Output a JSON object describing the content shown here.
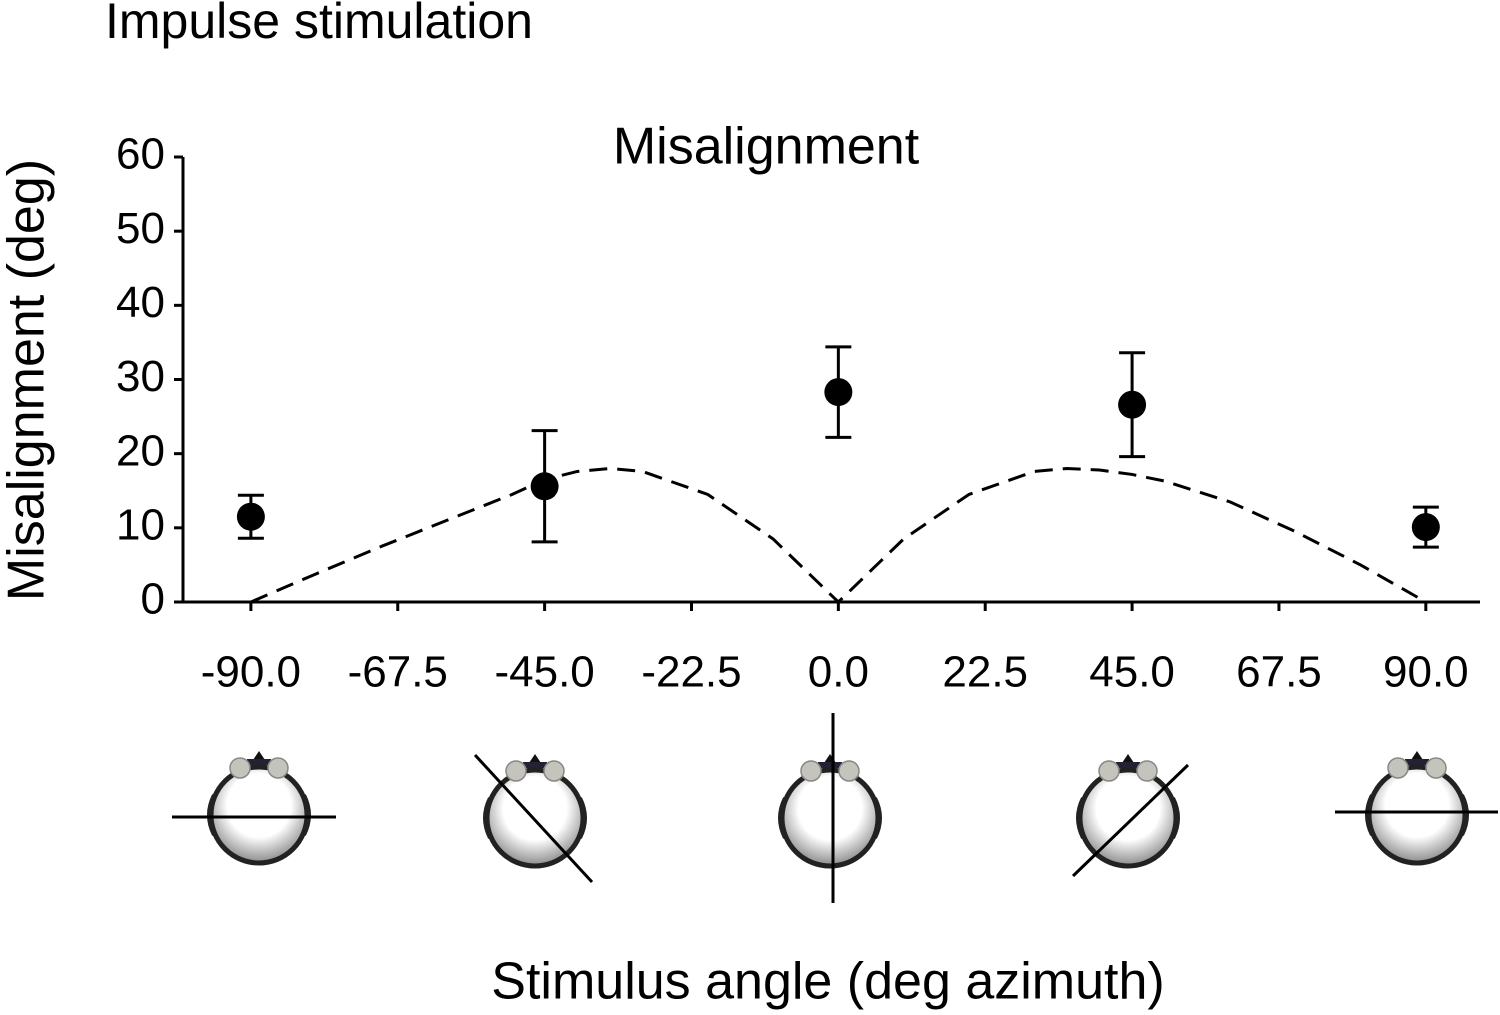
{
  "chart_data": {
    "type": "scatter",
    "heading": "Impulse stimulation",
    "title": "Misalignment",
    "xlabel": "Stimulus angle (deg azimuth)",
    "ylabel": "Misalignment (deg)",
    "x": [
      -90,
      -45,
      0,
      45,
      90
    ],
    "series": [
      {
        "color": "#000000",
        "values": [
          11.5,
          15.6,
          28.3,
          26.6,
          10.1
        ],
        "errors": [
          2.9,
          7.5,
          6.1,
          7.0,
          2.7
        ]
      }
    ],
    "curve": {
      "x": [
        -90,
        -80,
        -70,
        -60,
        -50,
        -45,
        -40,
        -35,
        -30,
        -20,
        -10,
        0,
        10,
        20,
        30,
        35,
        40,
        45,
        50,
        60,
        70,
        80,
        90
      ],
      "values": [
        0,
        3.8,
        7.5,
        11,
        14.5,
        16.5,
        17.6,
        18,
        17.6,
        14.5,
        8.5,
        0,
        8.5,
        14.5,
        17.6,
        18,
        17.8,
        17.2,
        16.3,
        13.5,
        9.5,
        5,
        0
      ]
    },
    "xlim": [
      -100.4,
      98.3
    ],
    "ylim": [
      0,
      60
    ],
    "xticks": [
      {
        "value": -90,
        "label": "-90.0"
      },
      {
        "value": -67.5,
        "label": "-67.5"
      },
      {
        "value": -45,
        "label": "-45.0"
      },
      {
        "value": -22.5,
        "label": "-22.5"
      },
      {
        "value": 0,
        "label": "0.0"
      },
      {
        "value": 22.5,
        "label": "22.5"
      },
      {
        "value": 45,
        "label": "45.0"
      },
      {
        "value": 67.5,
        "label": "67.5"
      },
      {
        "value": 90,
        "label": "90.0"
      }
    ],
    "yticks": [
      0,
      10,
      20,
      30,
      40,
      50,
      60
    ]
  }
}
